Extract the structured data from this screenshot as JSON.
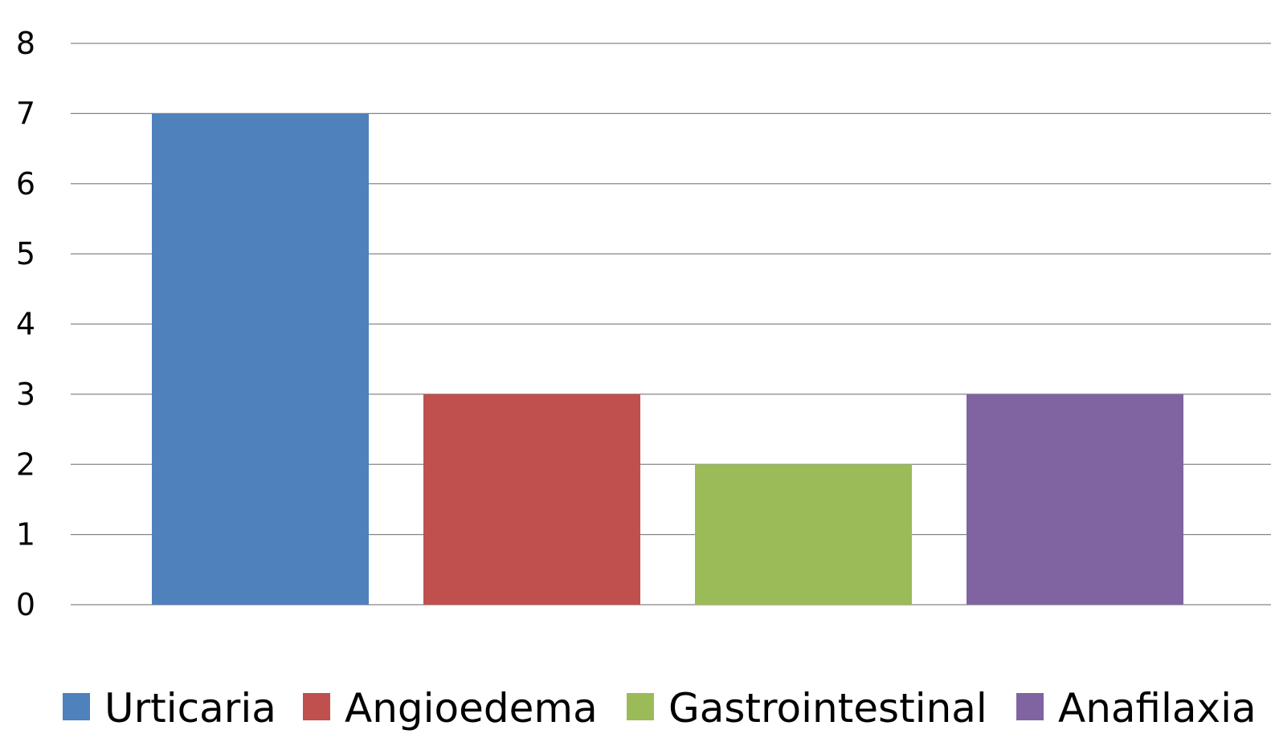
{
  "chart_data": {
    "type": "bar",
    "title": "",
    "xlabel": "",
    "ylabel": "",
    "categories": [
      "Urticaria",
      "Angioedema",
      "Gastrointestinal",
      "Anafilaxia"
    ],
    "values": [
      7,
      3,
      2,
      3
    ],
    "colors": [
      "#4f81bd",
      "#c0504d",
      "#9bbb59",
      "#8064a2"
    ],
    "ylim": [
      0,
      8
    ],
    "yticks": [
      0,
      1,
      2,
      3,
      4,
      5,
      6,
      7,
      8
    ],
    "grid": true,
    "legend": {
      "placement": "bottom",
      "entries": [
        "Urticaria",
        "Angioedema",
        "Gastrointestinal",
        "Anafilaxia"
      ]
    }
  }
}
